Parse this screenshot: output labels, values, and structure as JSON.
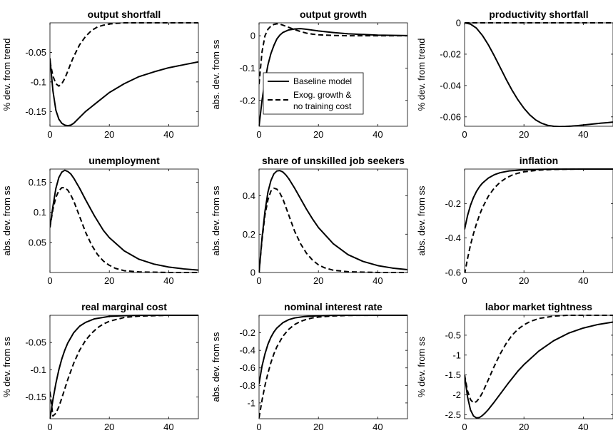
{
  "legend": {
    "entries": [
      {
        "label": "Baseline model",
        "style": "solid"
      },
      {
        "label_lines": [
          "Exog. growth &",
          "no training cost"
        ],
        "style": "dashed"
      }
    ]
  },
  "chart_data": [
    {
      "type": "line",
      "title": "output shortfall",
      "ylabel": "% dev. from trend",
      "xlim": [
        0,
        50
      ],
      "ylim": [
        -0.175,
        0
      ],
      "xticks": [
        0,
        20,
        40
      ],
      "yticks": [
        -0.15,
        -0.1,
        -0.05
      ],
      "ytick_labels": [
        "-0.15",
        "-0.1",
        "-0.05"
      ],
      "series": [
        {
          "style": "solid",
          "x": [
            0,
            1,
            2,
            3,
            4,
            5,
            6,
            7,
            8,
            10,
            12,
            15,
            20,
            25,
            30,
            35,
            40,
            45,
            50
          ],
          "y": [
            -0.06,
            -0.115,
            -0.148,
            -0.163,
            -0.17,
            -0.173,
            -0.174,
            -0.173,
            -0.17,
            -0.16,
            -0.15,
            -0.138,
            -0.118,
            -0.103,
            -0.091,
            -0.083,
            -0.076,
            -0.071,
            -0.066
          ]
        },
        {
          "style": "dashed",
          "x": [
            0,
            1,
            2,
            3,
            4,
            5,
            6,
            7,
            8,
            10,
            12,
            14,
            16,
            18,
            20,
            22,
            25,
            30,
            40,
            50
          ],
          "y": [
            -0.065,
            -0.09,
            -0.103,
            -0.107,
            -0.103,
            -0.094,
            -0.082,
            -0.069,
            -0.057,
            -0.037,
            -0.023,
            -0.013,
            -0.007,
            -0.004,
            -0.002,
            -0.001,
            0,
            0,
            0,
            0
          ]
        }
      ]
    },
    {
      "type": "line",
      "title": "output growth",
      "ylabel": "abs. dev. from ss",
      "xlim": [
        0,
        50
      ],
      "ylim": [
        -0.28,
        0.04
      ],
      "xticks": [
        0,
        20,
        40
      ],
      "yticks": [
        -0.2,
        -0.1,
        0
      ],
      "ytick_labels": [
        "-0.2",
        "-0.1",
        "0"
      ],
      "series": [
        {
          "style": "solid",
          "x": [
            0,
            1,
            2,
            3,
            4,
            5,
            6,
            7,
            8,
            10,
            12,
            14,
            16,
            20,
            25,
            30,
            40,
            50
          ],
          "y": [
            -0.28,
            -0.2,
            -0.14,
            -0.09,
            -0.055,
            -0.03,
            -0.01,
            0.002,
            0.01,
            0.018,
            0.021,
            0.022,
            0.02,
            0.015,
            0.01,
            0.006,
            0.002,
            0.0005
          ]
        },
        {
          "style": "dashed",
          "x": [
            0,
            1,
            2,
            3,
            4,
            5,
            6,
            7,
            8,
            10,
            12,
            14,
            16,
            18,
            20,
            25,
            30,
            40,
            50
          ],
          "y": [
            -0.15,
            -0.05,
            0.0,
            0.02,
            0.03,
            0.035,
            0.037,
            0.036,
            0.033,
            0.026,
            0.019,
            0.013,
            0.008,
            0.005,
            0.003,
            0.001,
            0,
            0,
            0
          ]
        }
      ]
    },
    {
      "type": "line",
      "title": "productivity shortfall",
      "ylabel": "% dev. from trend",
      "xlim": [
        0,
        50
      ],
      "ylim": [
        -0.066,
        0
      ],
      "xticks": [
        0,
        20,
        40
      ],
      "yticks": [
        -0.06,
        -0.04,
        -0.02,
        0
      ],
      "ytick_labels": [
        "-0.06",
        "-0.04",
        "-0.02",
        "0"
      ],
      "series": [
        {
          "style": "solid",
          "x": [
            0,
            2,
            4,
            6,
            8,
            10,
            12,
            14,
            16,
            18,
            20,
            22,
            24,
            26,
            28,
            30,
            32,
            34,
            36,
            38,
            40,
            42,
            44,
            46,
            48,
            50
          ],
          "y": [
            0,
            -0.0008,
            -0.0034,
            -0.008,
            -0.014,
            -0.021,
            -0.0285,
            -0.036,
            -0.043,
            -0.0492,
            -0.0545,
            -0.0588,
            -0.062,
            -0.0641,
            -0.0654,
            -0.066,
            -0.0662,
            -0.0661,
            -0.0659,
            -0.0656,
            -0.0652,
            -0.0648,
            -0.0644,
            -0.064,
            -0.0637,
            -0.0633
          ]
        },
        {
          "style": "dashed",
          "x": [
            0,
            50
          ],
          "y": [
            0,
            0
          ]
        }
      ]
    },
    {
      "type": "line",
      "title": "unemployment",
      "ylabel": "abs. dev. from ss",
      "xlim": [
        0,
        50
      ],
      "ylim": [
        0,
        0.172
      ],
      "xticks": [
        0,
        20,
        40
      ],
      "yticks": [
        0.05,
        0.1,
        0.15
      ],
      "ytick_labels": [
        "0.05",
        "0.1",
        "0.15"
      ],
      "series": [
        {
          "style": "solid",
          "x": [
            0,
            1,
            2,
            3,
            4,
            5,
            6,
            7,
            8,
            10,
            12,
            15,
            18,
            20,
            25,
            30,
            35,
            40,
            45,
            50
          ],
          "y": [
            0.075,
            0.11,
            0.14,
            0.158,
            0.167,
            0.17,
            0.168,
            0.164,
            0.157,
            0.14,
            0.121,
            0.094,
            0.07,
            0.058,
            0.036,
            0.022,
            0.014,
            0.009,
            0.006,
            0.004
          ]
        },
        {
          "style": "dashed",
          "x": [
            0,
            1,
            2,
            3,
            4,
            5,
            6,
            7,
            8,
            10,
            12,
            14,
            16,
            18,
            20,
            22,
            25,
            30,
            40,
            50
          ],
          "y": [
            0.075,
            0.105,
            0.125,
            0.136,
            0.141,
            0.141,
            0.137,
            0.129,
            0.119,
            0.093,
            0.067,
            0.046,
            0.03,
            0.019,
            0.012,
            0.007,
            0.003,
            0.001,
            0,
            0
          ]
        }
      ]
    },
    {
      "type": "line",
      "title": "share of unskilled job seekers",
      "ylabel": "abs. dev. from ss",
      "xlim": [
        0,
        50
      ],
      "ylim": [
        0,
        0.54
      ],
      "xticks": [
        0,
        20,
        40
      ],
      "yticks": [
        0,
        0.2,
        0.4
      ],
      "ytick_labels": [
        "0",
        "0.2",
        "0.4"
      ],
      "series": [
        {
          "style": "solid",
          "x": [
            0,
            1,
            2,
            3,
            4,
            5,
            6,
            7,
            8,
            9,
            10,
            12,
            14,
            16,
            18,
            20,
            25,
            30,
            35,
            40,
            45,
            50
          ],
          "y": [
            0,
            0.18,
            0.32,
            0.42,
            0.48,
            0.515,
            0.53,
            0.532,
            0.525,
            0.51,
            0.49,
            0.44,
            0.385,
            0.33,
            0.28,
            0.235,
            0.15,
            0.093,
            0.058,
            0.036,
            0.023,
            0.015
          ]
        },
        {
          "style": "dashed",
          "x": [
            0,
            1,
            2,
            3,
            4,
            5,
            6,
            7,
            8,
            10,
            12,
            14,
            16,
            18,
            20,
            22,
            25,
            30,
            40,
            50
          ],
          "y": [
            0,
            0.17,
            0.3,
            0.38,
            0.425,
            0.44,
            0.435,
            0.415,
            0.385,
            0.3,
            0.215,
            0.15,
            0.1,
            0.065,
            0.04,
            0.025,
            0.012,
            0.004,
            0,
            0
          ]
        }
      ]
    },
    {
      "type": "line",
      "title": "inflation",
      "ylabel": "abs. dev. from ss",
      "xlim": [
        0,
        50
      ],
      "ylim": [
        -0.6,
        0
      ],
      "xticks": [
        0,
        20,
        40
      ],
      "yticks": [
        -0.6,
        -0.4,
        -0.2
      ],
      "ytick_labels": [
        "-0.6",
        "-0.4",
        "-0.2"
      ],
      "series": [
        {
          "style": "solid",
          "x": [
            0,
            1,
            2,
            3,
            4,
            5,
            6,
            8,
            10,
            12,
            15,
            20,
            25,
            30,
            40,
            50
          ],
          "y": [
            -0.35,
            -0.27,
            -0.21,
            -0.165,
            -0.13,
            -0.103,
            -0.082,
            -0.052,
            -0.033,
            -0.021,
            -0.011,
            -0.004,
            -0.0015,
            -0.0005,
            0,
            0
          ]
        },
        {
          "style": "dashed",
          "x": [
            0,
            1,
            2,
            3,
            4,
            5,
            6,
            8,
            10,
            12,
            14,
            16,
            18,
            20,
            25,
            30,
            40,
            50
          ],
          "y": [
            -0.61,
            -0.52,
            -0.44,
            -0.375,
            -0.318,
            -0.268,
            -0.225,
            -0.158,
            -0.11,
            -0.076,
            -0.052,
            -0.035,
            -0.024,
            -0.016,
            -0.006,
            -0.002,
            0,
            0
          ]
        }
      ]
    },
    {
      "type": "line",
      "title": "real marginal cost",
      "ylabel": "% dev. from ss",
      "xlim": [
        0,
        50
      ],
      "ylim": [
        -0.19,
        0
      ],
      "xticks": [
        0,
        20,
        40
      ],
      "yticks": [
        -0.15,
        -0.1,
        -0.05
      ],
      "ytick_labels": [
        "-0.15",
        "-0.1",
        "-0.05"
      ],
      "series": [
        {
          "style": "solid",
          "x": [
            0,
            1,
            2,
            3,
            4,
            5,
            6,
            8,
            10,
            12,
            15,
            20,
            25,
            30,
            40,
            50
          ],
          "y": [
            -0.19,
            -0.155,
            -0.125,
            -0.1,
            -0.08,
            -0.064,
            -0.051,
            -0.032,
            -0.02,
            -0.013,
            -0.0065,
            -0.002,
            -0.0007,
            -0.0002,
            0,
            0
          ]
        },
        {
          "style": "dashed",
          "x": [
            0,
            1,
            2,
            3,
            4,
            5,
            6,
            8,
            10,
            12,
            14,
            16,
            18,
            20,
            25,
            30,
            40,
            50
          ],
          "y": [
            -0.14,
            -0.185,
            -0.18,
            -0.168,
            -0.152,
            -0.135,
            -0.118,
            -0.088,
            -0.064,
            -0.046,
            -0.033,
            -0.023,
            -0.016,
            -0.011,
            -0.004,
            -0.0015,
            0,
            0
          ]
        }
      ]
    },
    {
      "type": "line",
      "title": "nominal interest rate",
      "ylabel": "abs. dev. from ss",
      "xlim": [
        0,
        50
      ],
      "ylim": [
        -1.18,
        0
      ],
      "xticks": [
        0,
        20,
        40
      ],
      "yticks": [
        -1,
        -0.8,
        -0.6,
        -0.4,
        -0.2
      ],
      "ytick_labels": [
        "-1",
        "-0.8",
        "-0.6",
        "-0.4",
        "-0.2"
      ],
      "series": [
        {
          "style": "solid",
          "x": [
            0,
            1,
            2,
            3,
            4,
            5,
            6,
            8,
            10,
            12,
            15,
            20,
            25,
            30,
            40,
            50
          ],
          "y": [
            -0.78,
            -0.58,
            -0.44,
            -0.33,
            -0.25,
            -0.19,
            -0.145,
            -0.085,
            -0.05,
            -0.03,
            -0.015,
            -0.005,
            -0.0015,
            -0.0005,
            0,
            0
          ]
        },
        {
          "style": "dashed",
          "x": [
            0,
            1,
            2,
            3,
            4,
            5,
            6,
            8,
            10,
            12,
            14,
            16,
            18,
            20,
            25,
            30,
            40,
            50
          ],
          "y": [
            -1.17,
            -0.97,
            -0.8,
            -0.66,
            -0.54,
            -0.44,
            -0.36,
            -0.24,
            -0.16,
            -0.105,
            -0.07,
            -0.046,
            -0.03,
            -0.02,
            -0.007,
            -0.002,
            0,
            0
          ]
        }
      ]
    },
    {
      "type": "line",
      "title": "labor market tightness",
      "ylabel": "% dev. from ss",
      "xlim": [
        0,
        50
      ],
      "ylim": [
        -2.6,
        0
      ],
      "xticks": [
        0,
        20,
        40
      ],
      "yticks": [
        -2.5,
        -2,
        -1.5,
        -1,
        -0.5
      ],
      "ytick_labels": [
        "-2.5",
        "-2",
        "-1.5",
        "-1",
        "-0.5"
      ],
      "series": [
        {
          "style": "solid",
          "x": [
            0,
            1,
            2,
            3,
            4,
            5,
            6,
            7,
            8,
            10,
            12,
            15,
            18,
            20,
            25,
            30,
            35,
            40,
            45,
            50
          ],
          "y": [
            -1.5,
            -2.05,
            -2.38,
            -2.53,
            -2.58,
            -2.57,
            -2.52,
            -2.45,
            -2.37,
            -2.18,
            -1.98,
            -1.68,
            -1.4,
            -1.24,
            -0.9,
            -0.64,
            -0.45,
            -0.32,
            -0.23,
            -0.17
          ]
        },
        {
          "style": "dashed",
          "x": [
            0,
            1,
            2,
            3,
            4,
            5,
            6,
            8,
            10,
            12,
            14,
            16,
            18,
            20,
            22,
            25,
            30,
            35,
            40,
            50
          ],
          "y": [
            -1.5,
            -1.9,
            -2.12,
            -2.2,
            -2.17,
            -2.08,
            -1.95,
            -1.62,
            -1.28,
            -0.97,
            -0.71,
            -0.5,
            -0.35,
            -0.24,
            -0.16,
            -0.08,
            -0.02,
            0,
            0,
            0
          ]
        }
      ]
    }
  ]
}
